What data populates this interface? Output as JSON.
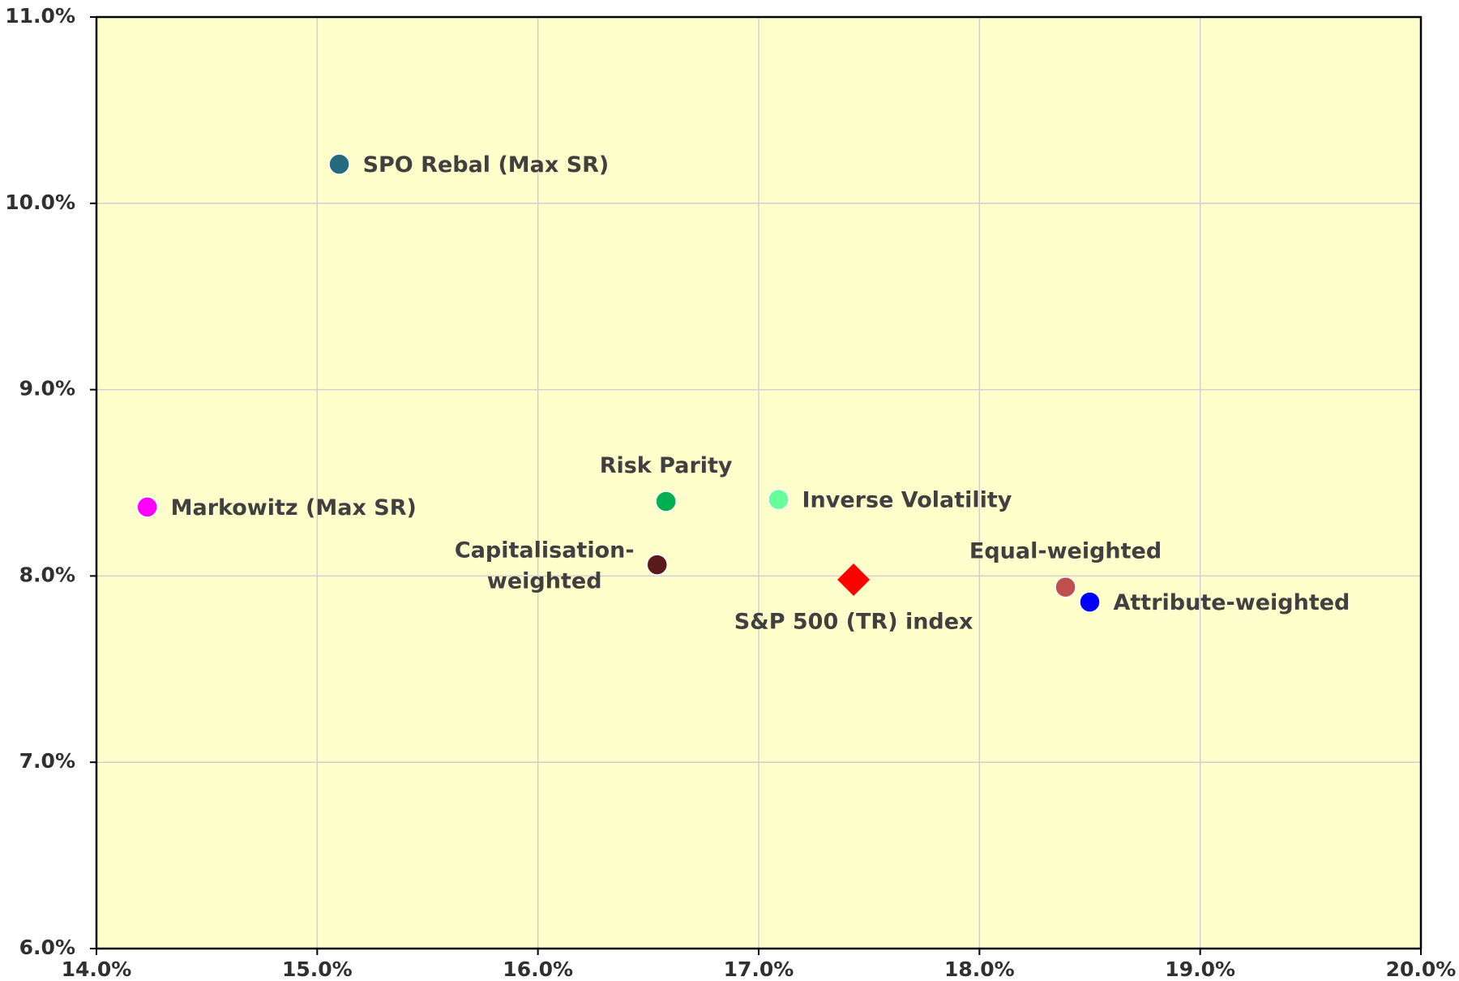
{
  "chart_data": {
    "type": "scatter",
    "xlim": [
      14,
      20
    ],
    "ylim": [
      6,
      11
    ],
    "xticks": [
      {
        "value": 14,
        "label": "14.0%"
      },
      {
        "value": 15,
        "label": "15.0%"
      },
      {
        "value": 16,
        "label": "16.0%"
      },
      {
        "value": 17,
        "label": "17.0%"
      },
      {
        "value": 18,
        "label": "18.0%"
      },
      {
        "value": 19,
        "label": "19.0%"
      },
      {
        "value": 20,
        "label": "20.0%"
      }
    ],
    "yticks": [
      {
        "value": 6,
        "label": "6.0%"
      },
      {
        "value": 7,
        "label": "7.0%"
      },
      {
        "value": 8,
        "label": "8.0%"
      },
      {
        "value": 9,
        "label": "9.0%"
      },
      {
        "value": 10,
        "label": "10.0%"
      },
      {
        "value": 11,
        "label": "11.0%"
      }
    ],
    "grid": true,
    "background": "#ffffcc",
    "points": [
      {
        "name": "SPO Rebal (Max SR)",
        "color": "#236b7d",
        "marker": "circle",
        "x": 15.1,
        "y": 10.21
      },
      {
        "name": "Markowitz (Max SR)",
        "color": "#ff00ff",
        "marker": "circle",
        "x": 14.23,
        "y": 8.37
      },
      {
        "name": "Risk Parity",
        "color": "#00b050",
        "marker": "circle",
        "x": 16.58,
        "y": 8.4
      },
      {
        "name": "Inverse Volatility",
        "color": "#66ff99",
        "marker": "circle",
        "x": 17.09,
        "y": 8.41
      },
      {
        "name": "Capitalisation-\nweighted",
        "color": "#5b1a1a",
        "marker": "circle",
        "x": 16.54,
        "y": 8.06
      },
      {
        "name": "S&P 500 (TR) index",
        "color": "#ff0000",
        "marker": "diamond",
        "x": 17.43,
        "y": 7.98
      },
      {
        "name": "Equal-weighted",
        "color": "#c0504d",
        "marker": "circle",
        "x": 18.39,
        "y": 7.94
      },
      {
        "name": "Attribute-weighted",
        "color": "#0000ff",
        "marker": "circle",
        "x": 18.5,
        "y": 7.86
      }
    ]
  }
}
